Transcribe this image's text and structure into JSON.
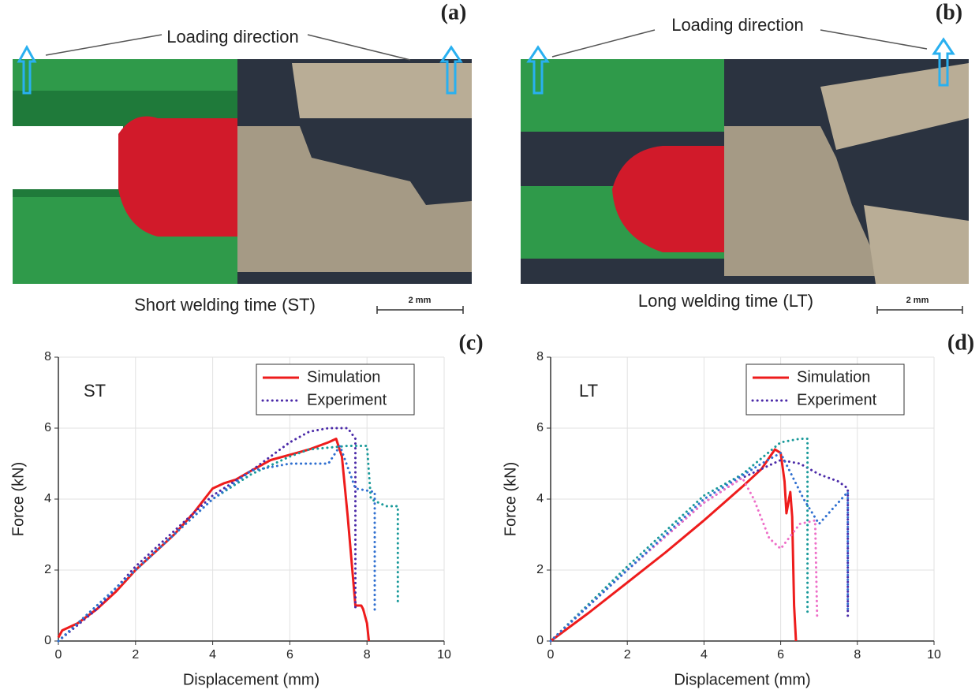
{
  "panels": [
    {
      "label": "(a)",
      "annotation": "Loading direction",
      "caption": "Short welding time (ST)",
      "scale_bar": "2 mm"
    },
    {
      "label": "(b)",
      "annotation": "Loading direction",
      "caption": "Long welding time (LT)",
      "scale_bar": "2 mm"
    }
  ],
  "chart_data": [
    {
      "type": "line",
      "panel_label": "(c)",
      "annotation": "ST",
      "x_label": "Displacement (mm)",
      "y_label": "Force (kN)",
      "xlim": [
        0,
        10
      ],
      "xticks": [
        0,
        2,
        4,
        6,
        8,
        10
      ],
      "ylim": [
        0,
        8
      ],
      "yticks": [
        0,
        2,
        4,
        6,
        8
      ],
      "grid": true,
      "legend": "upper right",
      "series": [
        {
          "name": "Simulation",
          "color": "#ee1c1c",
          "linestyle": "solid",
          "x": [
            0,
            0.1,
            0.5,
            1,
            1.5,
            2,
            2.5,
            3,
            3.5,
            4,
            4.3,
            4.6,
            5,
            5.5,
            6,
            6.5,
            7,
            7.2,
            7.35,
            7.5,
            7.7,
            7.85,
            7.9,
            8.0,
            8.05
          ],
          "values": [
            0.1,
            0.3,
            0.5,
            0.9,
            1.4,
            2.0,
            2.5,
            3.0,
            3.6,
            4.3,
            4.45,
            4.55,
            4.8,
            5.1,
            5.25,
            5.4,
            5.6,
            5.7,
            5.2,
            3.5,
            1.0,
            1.0,
            0.9,
            0.5,
            0
          ]
        },
        {
          "name": "Experiment",
          "color": "#4b2aa8",
          "linestyle": "dotted",
          "x": [
            0,
            1,
            2,
            3,
            4,
            5,
            6,
            6.5,
            7,
            7.5,
            7.7,
            7.7
          ],
          "values": [
            0,
            0.9,
            2.1,
            3.1,
            4.1,
            4.8,
            5.6,
            5.9,
            6.0,
            6.0,
            5.7,
            0.9
          ]
        },
        {
          "color": "#1a9a9a",
          "linestyle": "dotted",
          "x": [
            0,
            2,
            4,
            5,
            6,
            6.5,
            7.5,
            8,
            8.1,
            8.5,
            8.8,
            8.8
          ],
          "values": [
            0,
            2.0,
            4.0,
            4.7,
            5.2,
            5.4,
            5.5,
            5.5,
            4.0,
            3.8,
            3.8,
            1.0
          ]
        },
        {
          "color": "#2f6fd0",
          "linestyle": "dotted",
          "x": [
            0,
            2,
            4,
            5,
            6,
            7,
            7.3,
            7.7,
            8.2,
            8.2
          ],
          "values": [
            0,
            2.0,
            4.0,
            4.8,
            5.0,
            5.0,
            5.5,
            4.3,
            4.2,
            0.8
          ]
        }
      ]
    },
    {
      "type": "line",
      "panel_label": "(d)",
      "annotation": "LT",
      "x_label": "Displacement (mm)",
      "y_label": "Force (kN)",
      "xlim": [
        0,
        10
      ],
      "xticks": [
        0,
        2,
        4,
        6,
        8,
        10
      ],
      "ylim": [
        0,
        8
      ],
      "yticks": [
        0,
        2,
        4,
        6,
        8
      ],
      "grid": true,
      "legend": "upper right",
      "series": [
        {
          "name": "Simulation",
          "color": "#ee1c1c",
          "linestyle": "solid",
          "x": [
            0,
            1,
            2,
            3,
            4,
            5,
            5.5,
            5.85,
            6.0,
            6.1,
            6.15,
            6.25,
            6.3,
            6.35,
            6.4
          ],
          "values": [
            0,
            0.8,
            1.65,
            2.5,
            3.4,
            4.35,
            4.85,
            5.4,
            5.3,
            4.5,
            3.6,
            4.2,
            3.5,
            1.0,
            0
          ]
        },
        {
          "name": "Experiment",
          "color": "#4b2aa8",
          "linestyle": "dotted",
          "x": [
            0,
            2,
            4,
            5,
            6,
            6.5,
            7,
            7.5,
            7.75,
            7.75
          ],
          "values": [
            0,
            2.0,
            3.9,
            4.6,
            5.1,
            5.0,
            4.7,
            4.5,
            4.3,
            0.7
          ]
        },
        {
          "color": "#1a9a9a",
          "linestyle": "dotted",
          "x": [
            0,
            2,
            4,
            5,
            6,
            6.5,
            6.7,
            6.7
          ],
          "values": [
            0,
            2.1,
            4.1,
            4.7,
            5.6,
            5.7,
            5.7,
            0.8
          ]
        },
        {
          "color": "#ee6fc8",
          "linestyle": "dotted",
          "x": [
            0,
            2,
            4,
            5,
            5.3,
            5.7,
            6,
            6.5,
            6.9,
            6.95
          ],
          "values": [
            0,
            2.0,
            3.9,
            4.6,
            4.0,
            2.9,
            2.6,
            3.3,
            3.4,
            0.7
          ]
        },
        {
          "color": "#2f6fd0",
          "linestyle": "dotted",
          "x": [
            0,
            2,
            4,
            5.5,
            6,
            6.6,
            7,
            7.75,
            7.75
          ],
          "values": [
            0,
            2.0,
            4.0,
            5.0,
            5.3,
            4.0,
            3.3,
            4.2,
            0.8
          ]
        }
      ]
    }
  ]
}
